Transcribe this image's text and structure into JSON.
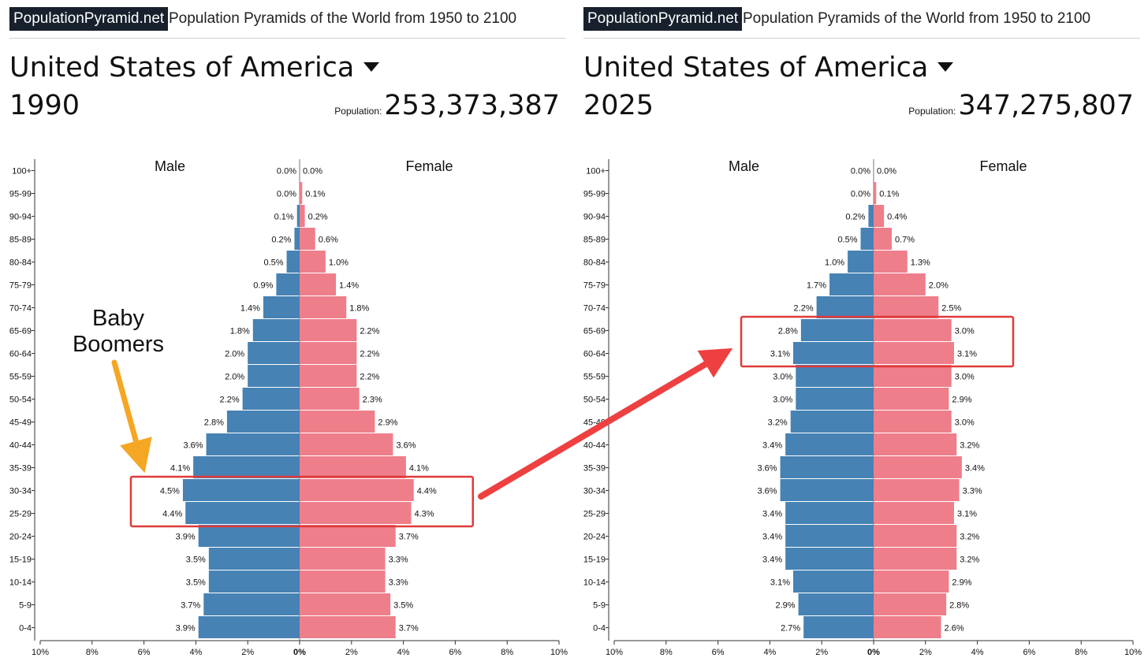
{
  "panels": [
    {
      "brand": "PopulationPyramid.net",
      "tagline": "Population Pyramids of the World from 1950 to 2100",
      "country": "United States of America",
      "year": "1990",
      "population_label": "Population:",
      "population": "253,373,387"
    },
    {
      "brand": "PopulationPyramid.net",
      "tagline": "Population Pyramids of the World from 1950 to 2100",
      "country": "United States of America",
      "year": "2025",
      "population_label": "Population:",
      "population": "347,275,807"
    }
  ],
  "annotation": {
    "text_line1": "Baby",
    "text_line2": "Boomers"
  },
  "colors": {
    "male": "#4682b4",
    "female": "#ee7e8a",
    "highlight": "#e03a3a",
    "arrow_orange": "#f5a623",
    "arrow_red": "#ee4040"
  },
  "chart_data": [
    {
      "type": "bar",
      "orientation": "horizontal-diverging",
      "year": "1990",
      "categories": [
        "100+",
        "95-99",
        "90-94",
        "85-89",
        "80-84",
        "75-79",
        "70-74",
        "65-69",
        "60-64",
        "55-59",
        "50-54",
        "45-49",
        "40-44",
        "35-39",
        "30-34",
        "25-29",
        "20-24",
        "15-19",
        "10-14",
        "5-9",
        "0-4"
      ],
      "series": [
        {
          "name": "Male",
          "values": [
            0.0,
            0.0,
            0.1,
            0.2,
            0.5,
            0.9,
            1.4,
            1.8,
            2.0,
            2.0,
            2.2,
            2.8,
            3.6,
            4.1,
            4.5,
            4.4,
            3.9,
            3.5,
            3.5,
            3.7,
            3.9
          ]
        },
        {
          "name": "Female",
          "values": [
            0.0,
            0.1,
            0.2,
            0.6,
            1.0,
            1.4,
            1.8,
            2.2,
            2.2,
            2.2,
            2.3,
            2.9,
            3.6,
            4.1,
            4.4,
            4.3,
            3.7,
            3.3,
            3.3,
            3.5,
            3.7
          ]
        }
      ],
      "x_ticks": [
        "10%",
        "8%",
        "6%",
        "4%",
        "2%",
        "0%",
        "2%",
        "4%",
        "6%",
        "8%",
        "10%"
      ],
      "xlim": [
        -10,
        10
      ],
      "highlighted_groups": [
        "30-34",
        "25-29"
      ]
    },
    {
      "type": "bar",
      "orientation": "horizontal-diverging",
      "year": "2025",
      "categories": [
        "100+",
        "95-99",
        "90-94",
        "85-89",
        "80-84",
        "75-79",
        "70-74",
        "65-69",
        "60-64",
        "55-59",
        "50-54",
        "45-49",
        "40-44",
        "35-39",
        "30-34",
        "25-29",
        "20-24",
        "15-19",
        "10-14",
        "5-9",
        "0-4"
      ],
      "series": [
        {
          "name": "Male",
          "values": [
            0.0,
            0.0,
            0.2,
            0.5,
            1.0,
            1.7,
            2.2,
            2.8,
            3.1,
            3.0,
            3.0,
            3.2,
            3.4,
            3.6,
            3.6,
            3.4,
            3.4,
            3.4,
            3.1,
            2.9,
            2.7
          ]
        },
        {
          "name": "Female",
          "values": [
            0.0,
            0.1,
            0.4,
            0.7,
            1.3,
            2.0,
            2.5,
            3.0,
            3.1,
            3.0,
            2.9,
            3.0,
            3.2,
            3.4,
            3.3,
            3.1,
            3.2,
            3.2,
            2.9,
            2.8,
            2.6
          ]
        }
      ],
      "x_ticks": [
        "10%",
        "8%",
        "6%",
        "4%",
        "2%",
        "0%",
        "2%",
        "4%",
        "6%",
        "8%",
        "10%"
      ],
      "xlim": [
        -10,
        10
      ],
      "highlighted_groups": [
        "65-69",
        "60-64"
      ]
    }
  ]
}
